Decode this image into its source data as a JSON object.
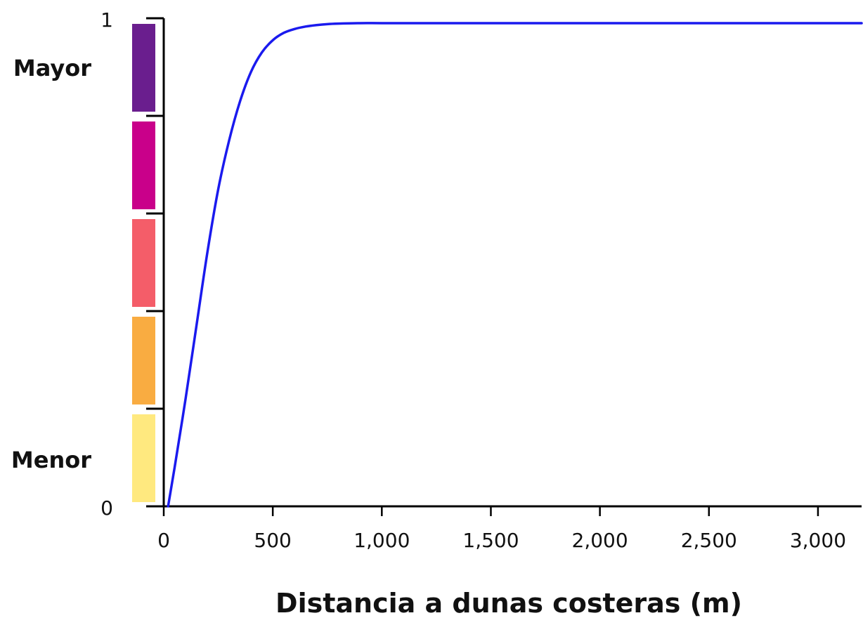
{
  "chart_data": {
    "type": "line",
    "title": "",
    "xlabel": "Distancia a dunas costeras (m)",
    "ylabel": "",
    "xlim": [
      0,
      3200
    ],
    "ylim": [
      0,
      1
    ],
    "x_ticks": [
      0,
      500,
      1000,
      1500,
      2000,
      2500,
      3000
    ],
    "x_tick_labels": [
      "0",
      "500",
      "1,000",
      "1,500",
      "2,000",
      "2,500",
      "3,000"
    ],
    "y_ticks": [
      0,
      1
    ],
    "y_tick_labels": [
      "0",
      "1"
    ],
    "y_scale_labels": {
      "high": "Mayor",
      "low": "Menor"
    },
    "color_scale": [
      "#FFE97F",
      "#F9AC41",
      "#F45D69",
      "#C9008A",
      "#6A1E8E"
    ],
    "grid": false,
    "series": [
      {
        "color": "#1a1aee",
        "x": [
          20,
          50,
          100,
          150,
          200,
          250,
          300,
          350,
          400,
          450,
          500,
          550,
          600,
          650,
          700,
          750,
          800,
          900,
          1000,
          1200,
          1500,
          2000,
          2500,
          3000,
          3200
        ],
        "y": [
          0.0,
          0.08,
          0.22,
          0.37,
          0.52,
          0.65,
          0.75,
          0.83,
          0.89,
          0.93,
          0.955,
          0.97,
          0.978,
          0.983,
          0.986,
          0.988,
          0.989,
          0.99,
          0.99,
          0.99,
          0.99,
          0.99,
          0.99,
          0.99,
          0.99
        ]
      }
    ]
  }
}
